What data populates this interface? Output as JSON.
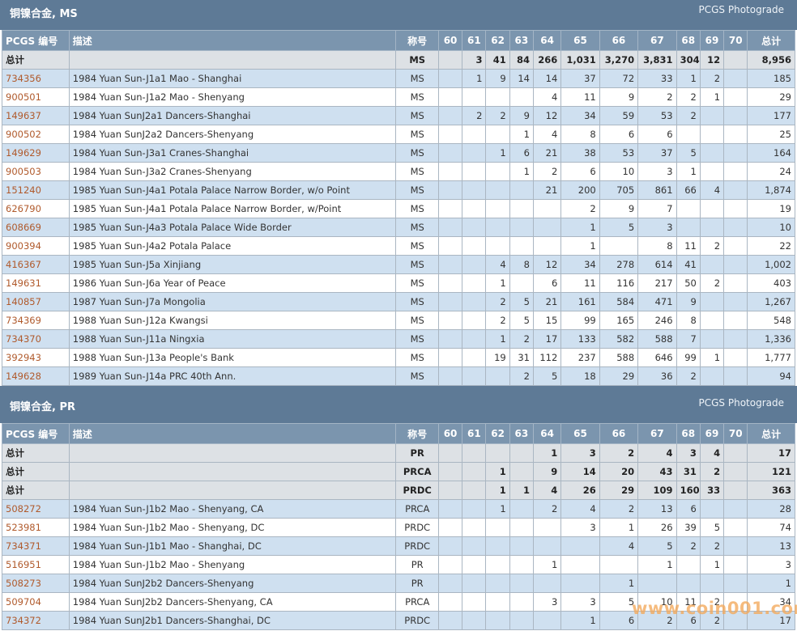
{
  "columns": [
    "PCGS 编号",
    "描述",
    "称号",
    "60",
    "61",
    "62",
    "63",
    "64",
    "65",
    "66",
    "67",
    "68",
    "69",
    "70",
    "总计"
  ],
  "sections": [
    {
      "title": "铜镍合金, MS",
      "photograde": "PCGS Photograde",
      "rows": [
        {
          "type": "total",
          "pcgs": "总计",
          "desc": "",
          "grade": "MS",
          "c60": "",
          "c61": "3",
          "c62": "41",
          "c63": "84",
          "c64": "266",
          "c65": "1,031",
          "c66": "3,270",
          "c67": "3,831",
          "c68": "304",
          "c69": "12",
          "c70": "",
          "total": "8,956"
        },
        {
          "type": "coin",
          "pcgs": "734356",
          "desc": "1984 Yuan Sun-J1a1 Mao - Shanghai",
          "grade": "MS",
          "c60": "",
          "c61": "1",
          "c62": "9",
          "c63": "14",
          "c64": "14",
          "c65": "37",
          "c66": "72",
          "c67": "33",
          "c68": "1",
          "c69": "2",
          "c70": "",
          "total": "185"
        },
        {
          "type": "coin",
          "pcgs": "900501",
          "desc": "1984 Yuan Sun-J1a2 Mao - Shenyang",
          "grade": "MS",
          "c60": "",
          "c61": "",
          "c62": "",
          "c63": "",
          "c64": "4",
          "c65": "11",
          "c66": "9",
          "c67": "2",
          "c68": "2",
          "c69": "1",
          "c70": "",
          "total": "29"
        },
        {
          "type": "coin",
          "pcgs": "149637",
          "desc": "1984 Yuan SunJ2a1 Dancers-Shanghai",
          "grade": "MS",
          "c60": "",
          "c61": "2",
          "c62": "2",
          "c63": "9",
          "c64": "12",
          "c65": "34",
          "c66": "59",
          "c67": "53",
          "c68": "2",
          "c69": "",
          "c70": "",
          "total": "177"
        },
        {
          "type": "coin",
          "pcgs": "900502",
          "desc": "1984 Yuan SunJ2a2 Dancers-Shenyang",
          "grade": "MS",
          "c60": "",
          "c61": "",
          "c62": "",
          "c63": "1",
          "c64": "4",
          "c65": "8",
          "c66": "6",
          "c67": "6",
          "c68": "",
          "c69": "",
          "c70": "",
          "total": "25"
        },
        {
          "type": "coin",
          "pcgs": "149629",
          "desc": "1984 Yuan Sun-J3a1 Cranes-Shanghai",
          "grade": "MS",
          "c60": "",
          "c61": "",
          "c62": "1",
          "c63": "6",
          "c64": "21",
          "c65": "38",
          "c66": "53",
          "c67": "37",
          "c68": "5",
          "c69": "",
          "c70": "",
          "total": "164"
        },
        {
          "type": "coin",
          "pcgs": "900503",
          "desc": "1984 Yuan Sun-J3a2 Cranes-Shenyang",
          "grade": "MS",
          "c60": "",
          "c61": "",
          "c62": "",
          "c63": "1",
          "c64": "2",
          "c65": "6",
          "c66": "10",
          "c67": "3",
          "c68": "1",
          "c69": "",
          "c70": "",
          "total": "24"
        },
        {
          "type": "coin",
          "pcgs": "151240",
          "desc": "1985 Yuan Sun-J4a1 Potala Palace Narrow Border, w/o Point",
          "grade": "MS",
          "c60": "",
          "c61": "",
          "c62": "",
          "c63": "",
          "c64": "21",
          "c65": "200",
          "c66": "705",
          "c67": "861",
          "c68": "66",
          "c69": "4",
          "c70": "",
          "total": "1,874"
        },
        {
          "type": "coin",
          "pcgs": "626790",
          "desc": "1985 Yuan Sun-J4a1 Potala Palace Narrow Border, w/Point",
          "grade": "MS",
          "c60": "",
          "c61": "",
          "c62": "",
          "c63": "",
          "c64": "",
          "c65": "2",
          "c66": "9",
          "c67": "7",
          "c68": "",
          "c69": "",
          "c70": "",
          "total": "19"
        },
        {
          "type": "coin",
          "pcgs": "608669",
          "desc": "1985 Yuan Sun-J4a3 Potala Palace Wide Border",
          "grade": "MS",
          "c60": "",
          "c61": "",
          "c62": "",
          "c63": "",
          "c64": "",
          "c65": "1",
          "c66": "5",
          "c67": "3",
          "c68": "",
          "c69": "",
          "c70": "",
          "total": "10"
        },
        {
          "type": "coin",
          "pcgs": "900394",
          "desc": "1985 Yuan Sun-J4a2 Potala Palace",
          "grade": "MS",
          "c60": "",
          "c61": "",
          "c62": "",
          "c63": "",
          "c64": "",
          "c65": "1",
          "c66": "",
          "c67": "8",
          "c68": "11",
          "c69": "2",
          "c70": "",
          "total": "22"
        },
        {
          "type": "coin",
          "pcgs": "416367",
          "desc": "1985 Yuan Sun-J5a Xinjiang",
          "grade": "MS",
          "c60": "",
          "c61": "",
          "c62": "4",
          "c63": "8",
          "c64": "12",
          "c65": "34",
          "c66": "278",
          "c67": "614",
          "c68": "41",
          "c69": "",
          "c70": "",
          "total": "1,002"
        },
        {
          "type": "coin",
          "pcgs": "149631",
          "desc": "1986 Yuan Sun-J6a Year of Peace",
          "grade": "MS",
          "c60": "",
          "c61": "",
          "c62": "1",
          "c63": "",
          "c64": "6",
          "c65": "11",
          "c66": "116",
          "c67": "217",
          "c68": "50",
          "c69": "2",
          "c70": "",
          "total": "403"
        },
        {
          "type": "coin",
          "pcgs": "140857",
          "desc": "1987 Yuan Sun-J7a Mongolia",
          "grade": "MS",
          "c60": "",
          "c61": "",
          "c62": "2",
          "c63": "5",
          "c64": "21",
          "c65": "161",
          "c66": "584",
          "c67": "471",
          "c68": "9",
          "c69": "",
          "c70": "",
          "total": "1,267"
        },
        {
          "type": "coin",
          "pcgs": "734369",
          "desc": "1988 Yuan Sun-J12a Kwangsi",
          "grade": "MS",
          "c60": "",
          "c61": "",
          "c62": "2",
          "c63": "5",
          "c64": "15",
          "c65": "99",
          "c66": "165",
          "c67": "246",
          "c68": "8",
          "c69": "",
          "c70": "",
          "total": "548"
        },
        {
          "type": "coin",
          "pcgs": "734370",
          "desc": "1988 Yuan Sun-J11a Ningxia",
          "grade": "MS",
          "c60": "",
          "c61": "",
          "c62": "1",
          "c63": "2",
          "c64": "17",
          "c65": "133",
          "c66": "582",
          "c67": "588",
          "c68": "7",
          "c69": "",
          "c70": "",
          "total": "1,336"
        },
        {
          "type": "coin",
          "pcgs": "392943",
          "desc": "1988 Yuan Sun-J13a People's Bank",
          "grade": "MS",
          "c60": "",
          "c61": "",
          "c62": "19",
          "c63": "31",
          "c64": "112",
          "c65": "237",
          "c66": "588",
          "c67": "646",
          "c68": "99",
          "c69": "1",
          "c70": "",
          "total": "1,777"
        },
        {
          "type": "coin",
          "pcgs": "149628",
          "desc": "1989 Yuan Sun-J14a PRC 40th Ann.",
          "grade": "MS",
          "c60": "",
          "c61": "",
          "c62": "",
          "c63": "2",
          "c64": "5",
          "c65": "18",
          "c66": "29",
          "c67": "36",
          "c68": "2",
          "c69": "",
          "c70": "",
          "total": "94"
        }
      ]
    },
    {
      "title": "铜镍合金, PR",
      "photograde": "PCGS Photograde",
      "rows": [
        {
          "type": "total",
          "pcgs": "总计",
          "desc": "",
          "grade": "PR",
          "c60": "",
          "c61": "",
          "c62": "",
          "c63": "",
          "c64": "1",
          "c65": "3",
          "c66": "2",
          "c67": "4",
          "c68": "3",
          "c69": "4",
          "c70": "",
          "total": "17"
        },
        {
          "type": "total",
          "pcgs": "总计",
          "desc": "",
          "grade": "PRCA",
          "c60": "",
          "c61": "",
          "c62": "1",
          "c63": "",
          "c64": "9",
          "c65": "14",
          "c66": "20",
          "c67": "43",
          "c68": "31",
          "c69": "2",
          "c70": "",
          "total": "121"
        },
        {
          "type": "total",
          "pcgs": "总计",
          "desc": "",
          "grade": "PRDC",
          "c60": "",
          "c61": "",
          "c62": "1",
          "c63": "1",
          "c64": "4",
          "c65": "26",
          "c66": "29",
          "c67": "109",
          "c68": "160",
          "c69": "33",
          "c70": "",
          "total": "363"
        },
        {
          "type": "coin",
          "pcgs": "508272",
          "desc": "1984 Yuan Sun-J1b2 Mao - Shenyang, CA",
          "grade": "PRCA",
          "c60": "",
          "c61": "",
          "c62": "1",
          "c63": "",
          "c64": "2",
          "c65": "4",
          "c66": "2",
          "c67": "13",
          "c68": "6",
          "c69": "",
          "c70": "",
          "total": "28"
        },
        {
          "type": "coin",
          "pcgs": "523981",
          "desc": "1984 Yuan Sun-J1b2 Mao - Shenyang, DC",
          "grade": "PRDC",
          "c60": "",
          "c61": "",
          "c62": "",
          "c63": "",
          "c64": "",
          "c65": "3",
          "c66": "1",
          "c67": "26",
          "c68": "39",
          "c69": "5",
          "c70": "",
          "total": "74"
        },
        {
          "type": "coin",
          "pcgs": "734371",
          "desc": "1984 Yuan Sun-J1b1 Mao - Shanghai, DC",
          "grade": "PRDC",
          "c60": "",
          "c61": "",
          "c62": "",
          "c63": "",
          "c64": "",
          "c65": "",
          "c66": "4",
          "c67": "5",
          "c68": "2",
          "c69": "2",
          "c70": "",
          "total": "13"
        },
        {
          "type": "coin",
          "pcgs": "516951",
          "desc": "1984 Yuan Sun-J1b2 Mao - Shenyang",
          "grade": "PR",
          "c60": "",
          "c61": "",
          "c62": "",
          "c63": "",
          "c64": "1",
          "c65": "",
          "c66": "",
          "c67": "1",
          "c68": "",
          "c69": "1",
          "c70": "",
          "total": "3"
        },
        {
          "type": "coin",
          "pcgs": "508273",
          "desc": "1984 Yuan SunJ2b2 Dancers-Shenyang",
          "grade": "PR",
          "c60": "",
          "c61": "",
          "c62": "",
          "c63": "",
          "c64": "",
          "c65": "",
          "c66": "1",
          "c67": "",
          "c68": "",
          "c69": "",
          "c70": "",
          "total": "1"
        },
        {
          "type": "coin",
          "pcgs": "509704",
          "desc": "1984 Yuan SunJ2b2 Dancers-Shenyang, CA",
          "grade": "PRCA",
          "c60": "",
          "c61": "",
          "c62": "",
          "c63": "",
          "c64": "3",
          "c65": "3",
          "c66": "5",
          "c67": "10",
          "c68": "11",
          "c69": "2",
          "c70": "",
          "total": "34"
        },
        {
          "type": "coin",
          "pcgs": "734372",
          "desc": "1984 Yuan SunJ2b1 Dancers-Shanghai, DC",
          "grade": "PRDC",
          "c60": "",
          "c61": "",
          "c62": "",
          "c63": "",
          "c64": "",
          "c65": "1",
          "c66": "6",
          "c67": "2",
          "c68": "6",
          "c69": "2",
          "c70": "",
          "total": "17"
        }
      ]
    }
  ],
  "watermark": "www.coin001.com",
  "colors": {
    "section_bar": "#5e7a96",
    "header_row": "#7b95ae",
    "total_row": "#dde1e5",
    "odd_row": "#cfe0f0",
    "pcgs_link": "#b05a2c",
    "watermark": "#f3a95b"
  }
}
